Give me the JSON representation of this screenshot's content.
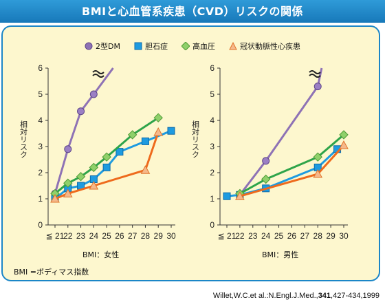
{
  "title": "BMIと心血管系疾患（CVD）リスクの関係",
  "legend": [
    {
      "name": "2型DM",
      "color": "#8e72b5",
      "marker": "circle"
    },
    {
      "name": "胆石症",
      "color": "#1e9be0",
      "marker": "square"
    },
    {
      "name": "高血圧",
      "color": "#6bb84a",
      "marker": "diamond"
    },
    {
      "name": "冠状動脈性心疾患",
      "color": "#f08a3a",
      "marker": "triangle"
    }
  ],
  "note": "BMI =ボディマス指数",
  "citation": {
    "prefix": "Willet,W.C.et al.:N.Engl.J.Med.,",
    "volume": "341",
    "suffix": ",427-434,1999"
  },
  "chart_data": [
    {
      "type": "line",
      "xlabel": "BMI：女性",
      "ylabel": "相対リスク",
      "x_ticks": [
        "≦ 21",
        "22",
        "23",
        "24",
        "25",
        "26",
        "27",
        "28",
        "29",
        "30"
      ],
      "y_ticks": [
        0,
        1,
        2,
        3,
        4,
        5,
        6
      ],
      "ylim": [
        0,
        6
      ],
      "series": [
        {
          "name": "2型DM",
          "x": [
            21,
            22,
            23,
            24,
            25.5
          ],
          "y": [
            1.2,
            2.9,
            4.35,
            5.0,
            6.0
          ]
        },
        {
          "name": "胆石症",
          "x": [
            21,
            22,
            23,
            24,
            25,
            26,
            28,
            30
          ],
          "y": [
            1.0,
            1.4,
            1.5,
            1.75,
            2.2,
            2.8,
            3.2,
            3.6
          ]
        },
        {
          "name": "高血圧",
          "x": [
            21,
            22,
            23,
            24,
            25,
            27,
            29
          ],
          "y": [
            1.2,
            1.6,
            1.85,
            2.2,
            2.6,
            3.45,
            4.1
          ]
        },
        {
          "name": "冠状動脈性心疾患",
          "x": [
            21,
            22,
            24,
            28,
            29
          ],
          "y": [
            1.0,
            1.2,
            1.5,
            2.1,
            3.55
          ]
        }
      ]
    },
    {
      "type": "line",
      "xlabel": "BMI：男性",
      "ylabel": "相対リスク",
      "x_ticks": [
        "≦ 21",
        "22",
        "23",
        "24",
        "25",
        "26",
        "27",
        "28",
        "29",
        "30"
      ],
      "y_ticks": [
        0,
        1,
        2,
        3,
        4,
        5,
        6
      ],
      "ylim": [
        0,
        6
      ],
      "series": [
        {
          "name": "2型DM",
          "x": [
            22,
            24,
            28,
            28.3
          ],
          "y": [
            1.15,
            2.45,
            5.3,
            6.0
          ]
        },
        {
          "name": "胆石症",
          "x": [
            21,
            22,
            24,
            28,
            29.5
          ],
          "y": [
            1.1,
            1.15,
            1.4,
            2.2,
            2.9
          ]
        },
        {
          "name": "高血圧",
          "x": [
            22,
            24,
            28,
            30
          ],
          "y": [
            1.2,
            1.75,
            2.6,
            3.45
          ]
        },
        {
          "name": "冠状動脈性心疾患",
          "x": [
            22,
            28,
            30
          ],
          "y": [
            1.1,
            1.95,
            3.05
          ]
        }
      ]
    }
  ]
}
